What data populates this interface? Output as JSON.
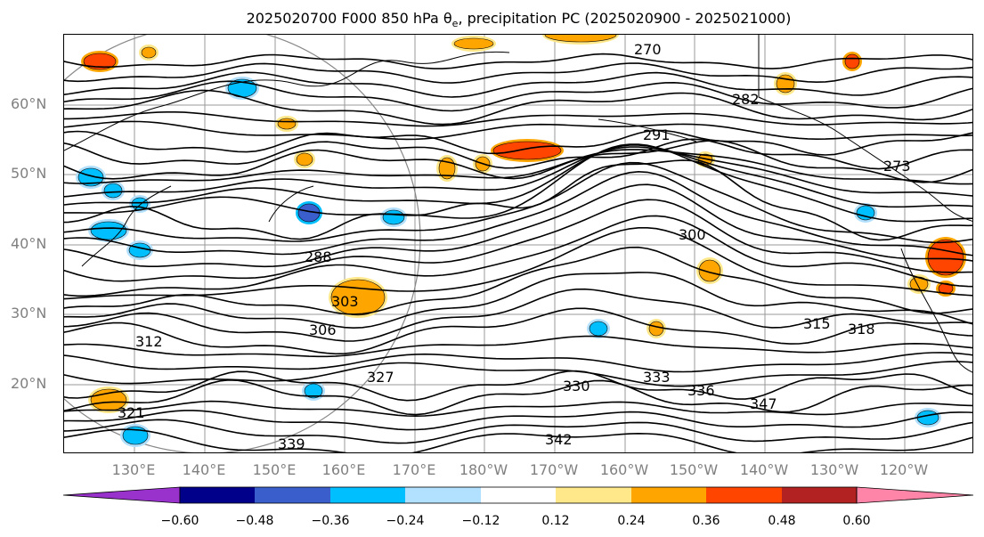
{
  "title_text": "2025020700 F000 850 hPa θ",
  "title_sub": "e",
  "title_rest": ", precipitation PC (2025020900 - 2025021000)",
  "lat_labels": [
    "60°N",
    "50°N",
    "40°N",
    "30°N",
    "20°N"
  ],
  "lon_labels": [
    "130°E",
    "140°E",
    "150°E",
    "160°E",
    "170°E",
    "180°W",
    "170°W",
    "160°W",
    "150°W",
    "140°W",
    "130°W",
    "120°W"
  ],
  "colorbar": {
    "colors": [
      "#9932cc",
      "#00008b",
      "#3a5fcd",
      "#00bfff",
      "#b2e0ff",
      "#ffffff",
      "#ffe88a",
      "#ffa500",
      "#ff4500",
      "#b22222",
      "#ff85a8"
    ],
    "ticks": [
      "−0.60",
      "−0.48",
      "−0.36",
      "−0.24",
      "−0.12",
      "0.12",
      "0.24",
      "0.36",
      "0.48",
      "0.60"
    ]
  },
  "contour_labels": [
    "270",
    "282",
    "291",
    "273",
    "288",
    "303",
    "306",
    "312",
    "315",
    "318",
    "321",
    "327",
    "330",
    "333",
    "336",
    "339",
    "342",
    "347",
    "300"
  ],
  "coastline_color": "#000000",
  "gridline_color": "#999999"
}
